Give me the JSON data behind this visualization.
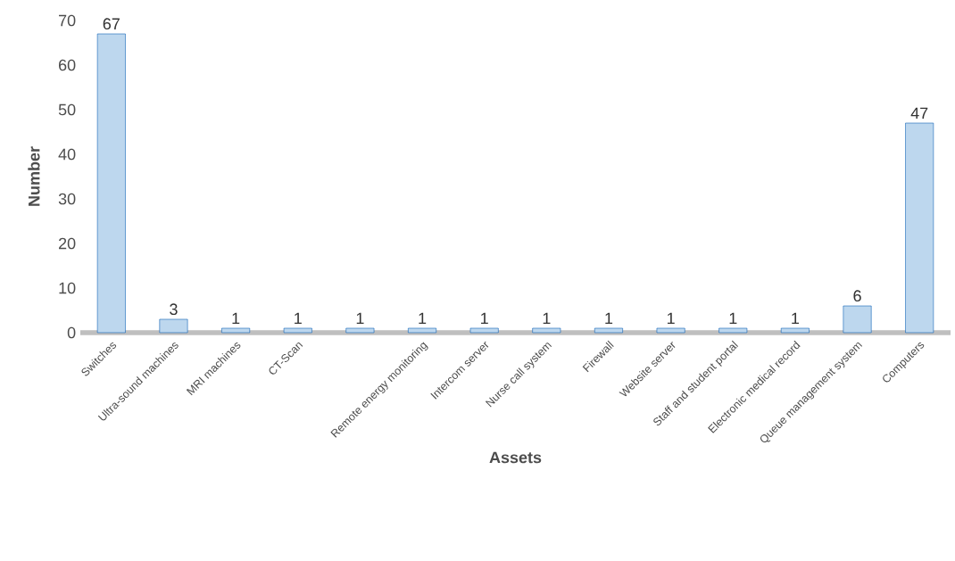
{
  "chart_data": {
    "type": "bar",
    "xlabel": "Assets",
    "ylabel": "Number",
    "categories": [
      "Switches",
      "Ultra-sound machines",
      "MRI machines",
      "CT-Scan",
      null,
      "Remote energy monitoring",
      "Intercom server",
      "Nurse call system",
      "Firewall",
      "Website server",
      "Staff and student portal",
      "Electronic medical record",
      "Queue management system",
      "Computers"
    ],
    "values": [
      67,
      3,
      1,
      1,
      1,
      1,
      1,
      1,
      1,
      1,
      1,
      1,
      6,
      47
    ],
    "color": "#bdd7ee",
    "ylim": [
      0,
      70
    ],
    "yticks": [
      0,
      10,
      20,
      30,
      40,
      50,
      60,
      70
    ],
    "data_labels": true
  }
}
